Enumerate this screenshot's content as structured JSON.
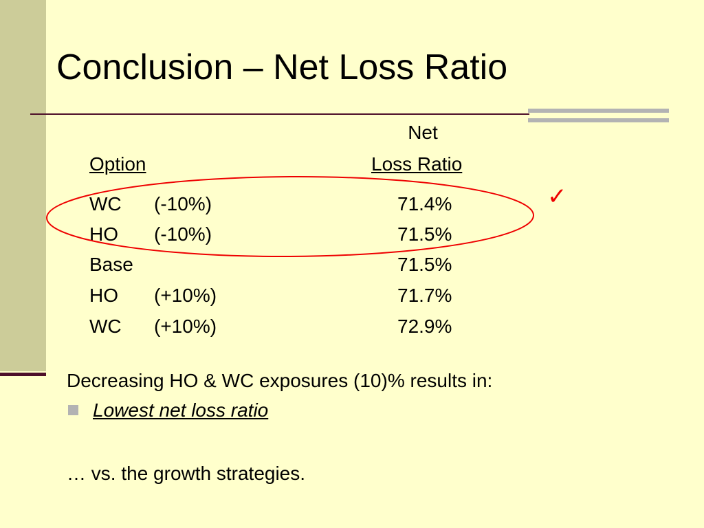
{
  "slide": {
    "title": "Conclusion – Net Loss Ratio"
  },
  "table": {
    "header_net": "Net",
    "header_option": "Option",
    "header_loss_ratio": "Loss Ratio",
    "rows": [
      {
        "option": "WC",
        "change": "(-10%)",
        "ratio": "71.4%"
      },
      {
        "option": "HO",
        "change": "(-10%)",
        "ratio": "71.5%"
      },
      {
        "option": "Base",
        "change": "",
        "ratio": "71.5%"
      },
      {
        "option": "HO",
        "change": "(+10%)",
        "ratio": "71.7%"
      },
      {
        "option": "WC",
        "change": "(+10%)",
        "ratio": "72.9%"
      }
    ]
  },
  "annotation": {
    "checkmark": "✓",
    "checkmark_color": "#ee0000",
    "ellipse_color": "#ee0000"
  },
  "body": {
    "summary": "Decreasing HO & WC exposures (10)% results in:",
    "bullet": "Lowest net loss ratio",
    "closing": "… vs. the growth strategies."
  },
  "colors": {
    "background": "#ffffcc",
    "side_bar": "#cccc99",
    "accent": "#4d0f2a",
    "gray_accent": "#b3b3b3"
  }
}
